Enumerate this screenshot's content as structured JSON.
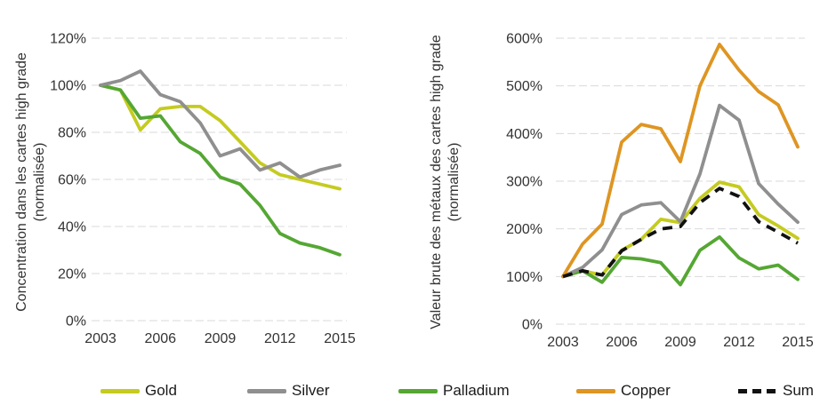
{
  "colors": {
    "gold": "#c5cb20",
    "silver": "#8f8f8f",
    "palladium": "#55a733",
    "copper": "#de9522",
    "sum": "#111111",
    "gridline": "#d9d9d9",
    "axis_text": "#333333"
  },
  "legend": {
    "items": [
      {
        "label": "Gold",
        "color": "#c5cb20",
        "dashed": false
      },
      {
        "label": "Silver",
        "color": "#8f8f8f",
        "dashed": false
      },
      {
        "label": "Palladium",
        "color": "#55a733",
        "dashed": false
      },
      {
        "label": "Copper",
        "color": "#de9522",
        "dashed": false
      },
      {
        "label": "Sum",
        "color": "#111111",
        "dashed": true
      }
    ]
  },
  "chart_data": [
    {
      "type": "line",
      "title": "",
      "ylabel": "Concentration dans les cartes high grade",
      "ylabel_sub": "(normalisée)",
      "x": [
        2003,
        2004,
        2005,
        2006,
        2007,
        2008,
        2009,
        2010,
        2011,
        2012,
        2013,
        2014,
        2015
      ],
      "xtick_values": [
        2003,
        2006,
        2009,
        2012,
        2015
      ],
      "xtick_labels": [
        "2003",
        "2006",
        "2009",
        "2012",
        "2015"
      ],
      "ylim": [
        0,
        120
      ],
      "yticks": [
        {
          "value": 0,
          "label": "0%"
        },
        {
          "value": 20,
          "label": "20%"
        },
        {
          "value": 40,
          "label": "40%"
        },
        {
          "value": 60,
          "label": "60%"
        },
        {
          "value": 80,
          "label": "80%"
        },
        {
          "value": 100,
          "label": "100%"
        },
        {
          "value": 120,
          "label": "120%"
        }
      ],
      "grid": true,
      "legend_position": "bottom",
      "series": [
        {
          "name": "Gold",
          "color": "#c5cb20",
          "dashed": false,
          "values": [
            100,
            98,
            81,
            90,
            91,
            91,
            85,
            76,
            67,
            62,
            60,
            58,
            56
          ]
        },
        {
          "name": "Palladium",
          "color": "#55a733",
          "dashed": false,
          "values": [
            100,
            98,
            86,
            87,
            76,
            71,
            61,
            58,
            49,
            37,
            33,
            31,
            28
          ]
        },
        {
          "name": "Silver",
          "color": "#8f8f8f",
          "dashed": false,
          "values": [
            100,
            102,
            106,
            96,
            93,
            84,
            70,
            73,
            64,
            67,
            61,
            64,
            66
          ]
        }
      ]
    },
    {
      "type": "line",
      "title": "",
      "ylabel": "Valeur brute des métaux des cartes high grade",
      "ylabel_sub": "(normalisée)",
      "x": [
        2003,
        2004,
        2005,
        2006,
        2007,
        2008,
        2009,
        2010,
        2011,
        2012,
        2013,
        2014,
        2015
      ],
      "xtick_values": [
        2003,
        2006,
        2009,
        2012,
        2015
      ],
      "xtick_labels": [
        "2003",
        "2006",
        "2009",
        "2012",
        "2015"
      ],
      "ylim": [
        0,
        600
      ],
      "yticks": [
        {
          "value": 0,
          "label": "0%"
        },
        {
          "value": 100,
          "label": "100%"
        },
        {
          "value": 200,
          "label": "200%"
        },
        {
          "value": 300,
          "label": "300%"
        },
        {
          "value": 400,
          "label": "400%"
        },
        {
          "value": 500,
          "label": "500%"
        },
        {
          "value": 600,
          "label": "600%"
        }
      ],
      "grid": true,
      "legend_position": "bottom",
      "series": [
        {
          "name": "Gold",
          "color": "#c5cb20",
          "dashed": false,
          "values": [
            100,
            112,
            103,
            155,
            178,
            220,
            213,
            264,
            298,
            288,
            230,
            206,
            180
          ]
        },
        {
          "name": "Palladium",
          "color": "#55a733",
          "dashed": false,
          "values": [
            100,
            112,
            88,
            140,
            137,
            129,
            83,
            155,
            183,
            139,
            116,
            124,
            94
          ]
        },
        {
          "name": "Silver",
          "color": "#8f8f8f",
          "dashed": false,
          "values": [
            100,
            119,
            156,
            230,
            250,
            255,
            215,
            315,
            459,
            428,
            295,
            252,
            214
          ]
        },
        {
          "name": "Copper",
          "color": "#de9522",
          "dashed": false,
          "values": [
            100,
            168,
            210,
            382,
            419,
            410,
            341,
            500,
            587,
            533,
            488,
            460,
            372
          ]
        },
        {
          "name": "Sum",
          "color": "#111111",
          "dashed": true,
          "values": [
            100,
            112,
            103,
            154,
            178,
            200,
            205,
            255,
            285,
            268,
            215,
            193,
            170
          ]
        }
      ]
    }
  ]
}
